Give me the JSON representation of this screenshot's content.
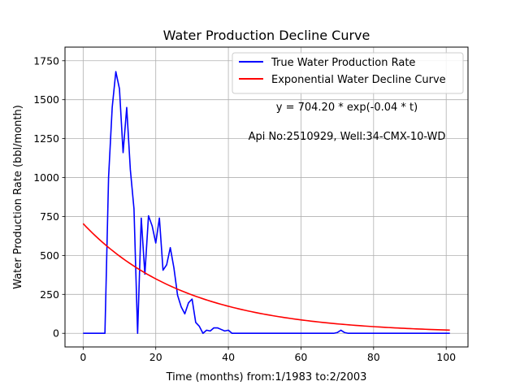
{
  "chart_data": {
    "type": "line",
    "title": "Water Production Decline Curve",
    "xlabel": "Time (months) from:1/1983 to:2/2003",
    "ylabel": "Water Production Rate (bbl/month)",
    "xlim": [
      -5,
      106
    ],
    "ylim": [
      -87.5,
      1837.5
    ],
    "x_ticks": [
      0,
      20,
      40,
      60,
      80,
      100
    ],
    "y_ticks": [
      0,
      250,
      500,
      750,
      1000,
      1250,
      1500,
      1750
    ],
    "grid": true,
    "legend_position": "top-right",
    "annotations": [
      "y = 704.20 * exp(-0.04 * t)",
      "Api No:2510929, Well:34-CMX-10-WD"
    ],
    "series": [
      {
        "name": "True Water Production Rate",
        "color": "#0000ff",
        "kind": "line",
        "x": [
          0,
          1,
          2,
          3,
          4,
          5,
          6,
          7,
          8,
          9,
          10,
          11,
          12,
          13,
          14,
          15,
          16,
          17,
          18,
          19,
          20,
          21,
          22,
          23,
          24,
          25,
          26,
          27,
          28,
          29,
          30,
          31,
          32,
          33,
          34,
          35,
          36,
          37,
          38,
          39,
          40,
          41,
          42,
          43,
          44,
          45,
          46,
          47,
          48,
          49,
          50,
          51,
          52,
          53,
          54,
          55,
          56,
          57,
          58,
          59,
          60,
          61,
          62,
          63,
          64,
          65,
          66,
          67,
          68,
          69,
          70,
          71,
          72,
          73,
          74,
          75,
          76,
          77,
          78,
          79,
          80,
          81,
          82,
          83,
          84,
          85,
          86,
          87,
          88,
          89,
          90,
          91,
          92,
          93,
          94,
          95,
          96,
          97,
          98,
          99,
          100,
          101
        ],
        "y": [
          0,
          0,
          0,
          0,
          0,
          0,
          0,
          1000,
          1450,
          1680,
          1570,
          1160,
          1450,
          1050,
          800,
          0,
          740,
          380,
          755,
          690,
          580,
          740,
          405,
          440,
          550,
          420,
          245,
          170,
          125,
          195,
          220,
          70,
          45,
          0,
          20,
          15,
          35,
          35,
          25,
          15,
          20,
          0,
          0,
          0,
          0,
          0,
          0,
          0,
          0,
          0,
          0,
          0,
          0,
          0,
          0,
          0,
          0,
          0,
          0,
          0,
          0,
          0,
          0,
          0,
          0,
          0,
          0,
          0,
          0,
          0,
          5,
          20,
          5,
          0,
          0,
          0,
          0,
          0,
          0,
          0,
          0,
          0,
          0,
          0,
          0,
          0,
          0,
          0,
          0,
          0,
          0,
          0,
          0,
          0,
          0,
          0,
          0,
          0,
          0,
          0,
          0,
          0
        ]
      },
      {
        "name": "Exponential Water Decline Curve",
        "color": "#ff0000",
        "kind": "exponential",
        "a": 704.2,
        "b": -0.035,
        "x_start": 0,
        "x_end": 101
      }
    ]
  }
}
